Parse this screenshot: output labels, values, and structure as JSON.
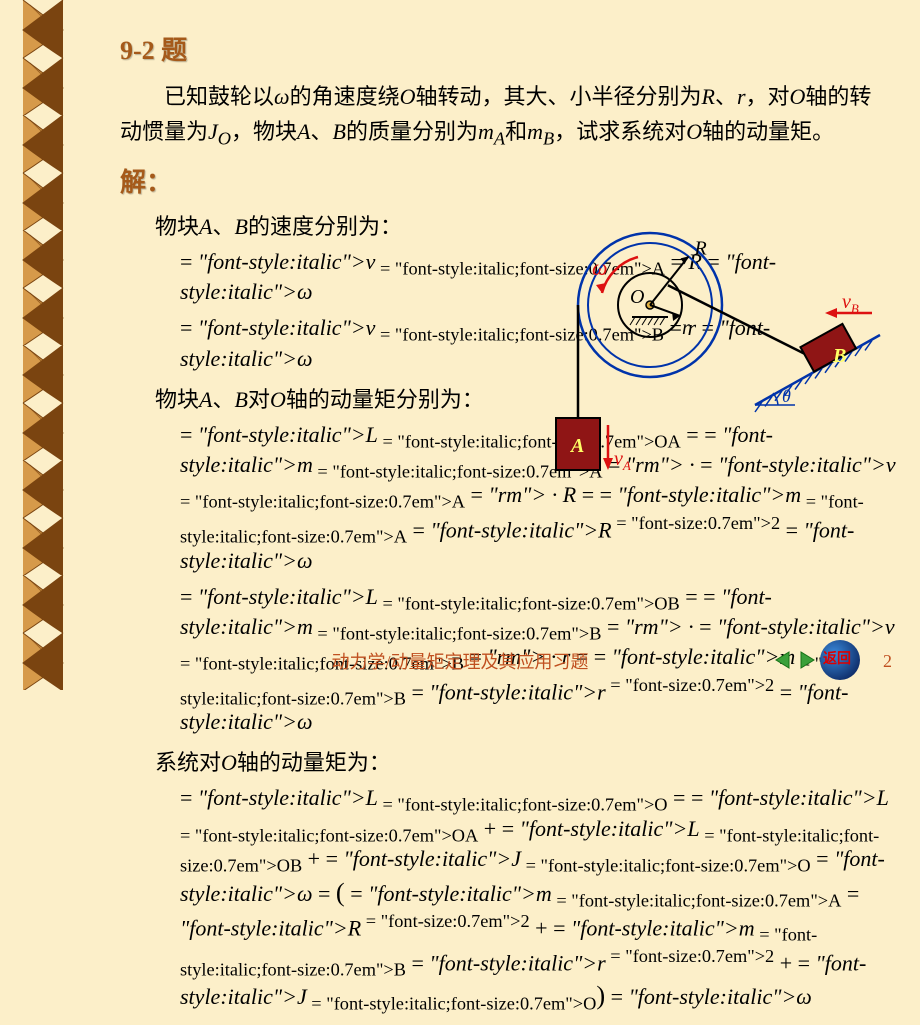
{
  "title": "9-2 题",
  "problem": "已知鼓轮以<i>ω</i>的角速度绕<i>O</i>轴转动，其大、小半径分别为<i>R</i>、<i>r</i>，对<i>O</i>轴的转动惯量为<i>J<sub>O</sub></i>，物块<i>A</i>、<i>B</i>的质量分别为<i>m<sub>A</sub></i>和<i>m<sub>B</sub></i>，试求系统对<i>O</i>轴的动量矩。",
  "solve_label": "解：",
  "lines": {
    "l1": "物块<i>A</i>、<i>B</i>的速度分别为：",
    "l2": "物块<i>A</i>、<i>B</i>对<i>O</i>轴的动量矩分别为：",
    "l3": "系统对<i>O</i>轴的动量矩为："
  },
  "formulas": {
    "f1": "v<sub>A</sub> = Rω",
    "f2": "v<sub>B</sub> = rω",
    "f3": "L<sub>OA</sub> = m<sub>A</sub> · v<sub>A</sub> · R = m<sub>A</sub>R<sup>2</sup>ω",
    "f4": "L<sub>OB</sub> = m<sub>B</sub> · v<sub>B</sub> · r = m<sub>B</sub>r<sup>2</sup>ω",
    "f5": "L<sub>O</sub> = L<sub>OA</sub> + L<sub>OB</sub> + J<sub>O</sub>ω = (m<sub>A</sub>R<sup>2</sup> + m<sub>B</sub>r<sup>2</sup> + J<sub>O</sub>)ω"
  },
  "footer": "动力学/动量矩定理及其应用习题",
  "page": "2",
  "return_label": "返回",
  "diagram": {
    "labels": {
      "R": "R",
      "r": "r",
      "O": "O",
      "omega": "ω",
      "A": "A",
      "B": "B",
      "theta": "θ",
      "vA": "v",
      "vAsub": "A",
      "vB": "v",
      "vBsub": "B"
    },
    "colors": {
      "outer_circle": "#0033aa",
      "inner_circle": "#000000",
      "block_fill": "#8f1515",
      "block_label": "#ffff66",
      "arrow_red": "#dd1111",
      "line": "#000000",
      "ground": "#0033aa"
    }
  },
  "braid": {
    "count": 12,
    "light": "#d69a4a",
    "dark": "#7a4410"
  }
}
